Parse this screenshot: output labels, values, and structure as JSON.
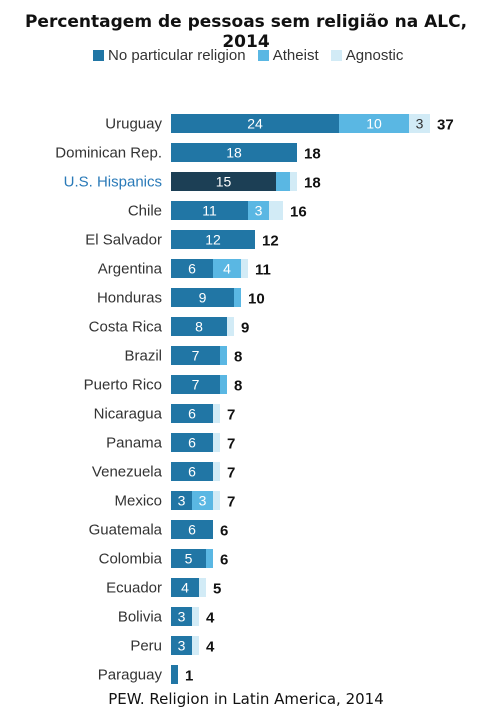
{
  "title": "Percentagem de pessoas sem religião na ALC, 2014",
  "source": "PEW. Religion in Latin America, 2014",
  "colors": {
    "no_particular": "#2176a5",
    "no_particular_highlight": "#1c3f55",
    "atheist": "#5ab7e3",
    "agnostic": "#d2ebf6",
    "highlight_label": "#2a7ab8"
  },
  "chart_data": {
    "type": "bar",
    "orientation": "horizontal",
    "stacked": true,
    "categories": [
      "Uruguay",
      "Dominican Rep.",
      "U.S. Hispanics",
      "Chile",
      "El Salvador",
      "Argentina",
      "Honduras",
      "Costa Rica",
      "Brazil",
      "Puerto Rico",
      "Nicaragua",
      "Panama",
      "Venezuela",
      "Mexico",
      "Guatemala",
      "Colombia",
      "Ecuador",
      "Bolivia",
      "Peru",
      "Paraguay"
    ],
    "highlight_category": "U.S. Hispanics",
    "series": [
      {
        "name": "No particular religion",
        "values": [
          24,
          18,
          15,
          11,
          12,
          6,
          9,
          8,
          7,
          7,
          6,
          6,
          6,
          3,
          6,
          5,
          4,
          3,
          3,
          1
        ]
      },
      {
        "name": "Atheist",
        "values": [
          10,
          0,
          2,
          3,
          0,
          4,
          1,
          0,
          1,
          1,
          0,
          0,
          0,
          3,
          0,
          1,
          0,
          0,
          0,
          0
        ]
      },
      {
        "name": "Agnostic",
        "values": [
          3,
          0,
          1,
          2,
          0,
          1,
          0,
          1,
          0,
          0,
          1,
          1,
          1,
          1,
          0,
          0,
          1,
          1,
          1,
          0
        ]
      }
    ],
    "segment_labels": [
      [
        "24",
        "10",
        "3"
      ],
      [
        "18",
        "",
        ""
      ],
      [
        "15",
        "",
        ""
      ],
      [
        "11",
        "3",
        ""
      ],
      [
        "12",
        "",
        ""
      ],
      [
        "6",
        "4",
        ""
      ],
      [
        "9",
        "",
        ""
      ],
      [
        "8",
        "",
        ""
      ],
      [
        "7",
        "",
        ""
      ],
      [
        "7",
        "",
        ""
      ],
      [
        "6",
        "",
        ""
      ],
      [
        "6",
        "",
        ""
      ],
      [
        "6",
        "",
        ""
      ],
      [
        "3",
        "3",
        ""
      ],
      [
        "6",
        "",
        ""
      ],
      [
        "5",
        "",
        ""
      ],
      [
        "4",
        "",
        ""
      ],
      [
        "3",
        "",
        ""
      ],
      [
        "3",
        "",
        ""
      ],
      [
        "",
        "",
        ""
      ]
    ],
    "totals": [
      37,
      18,
      18,
      16,
      12,
      11,
      10,
      9,
      8,
      8,
      7,
      7,
      7,
      7,
      6,
      6,
      5,
      4,
      4,
      1
    ],
    "xlim": [
      0,
      40
    ],
    "grid": false,
    "legend_position": "top"
  }
}
